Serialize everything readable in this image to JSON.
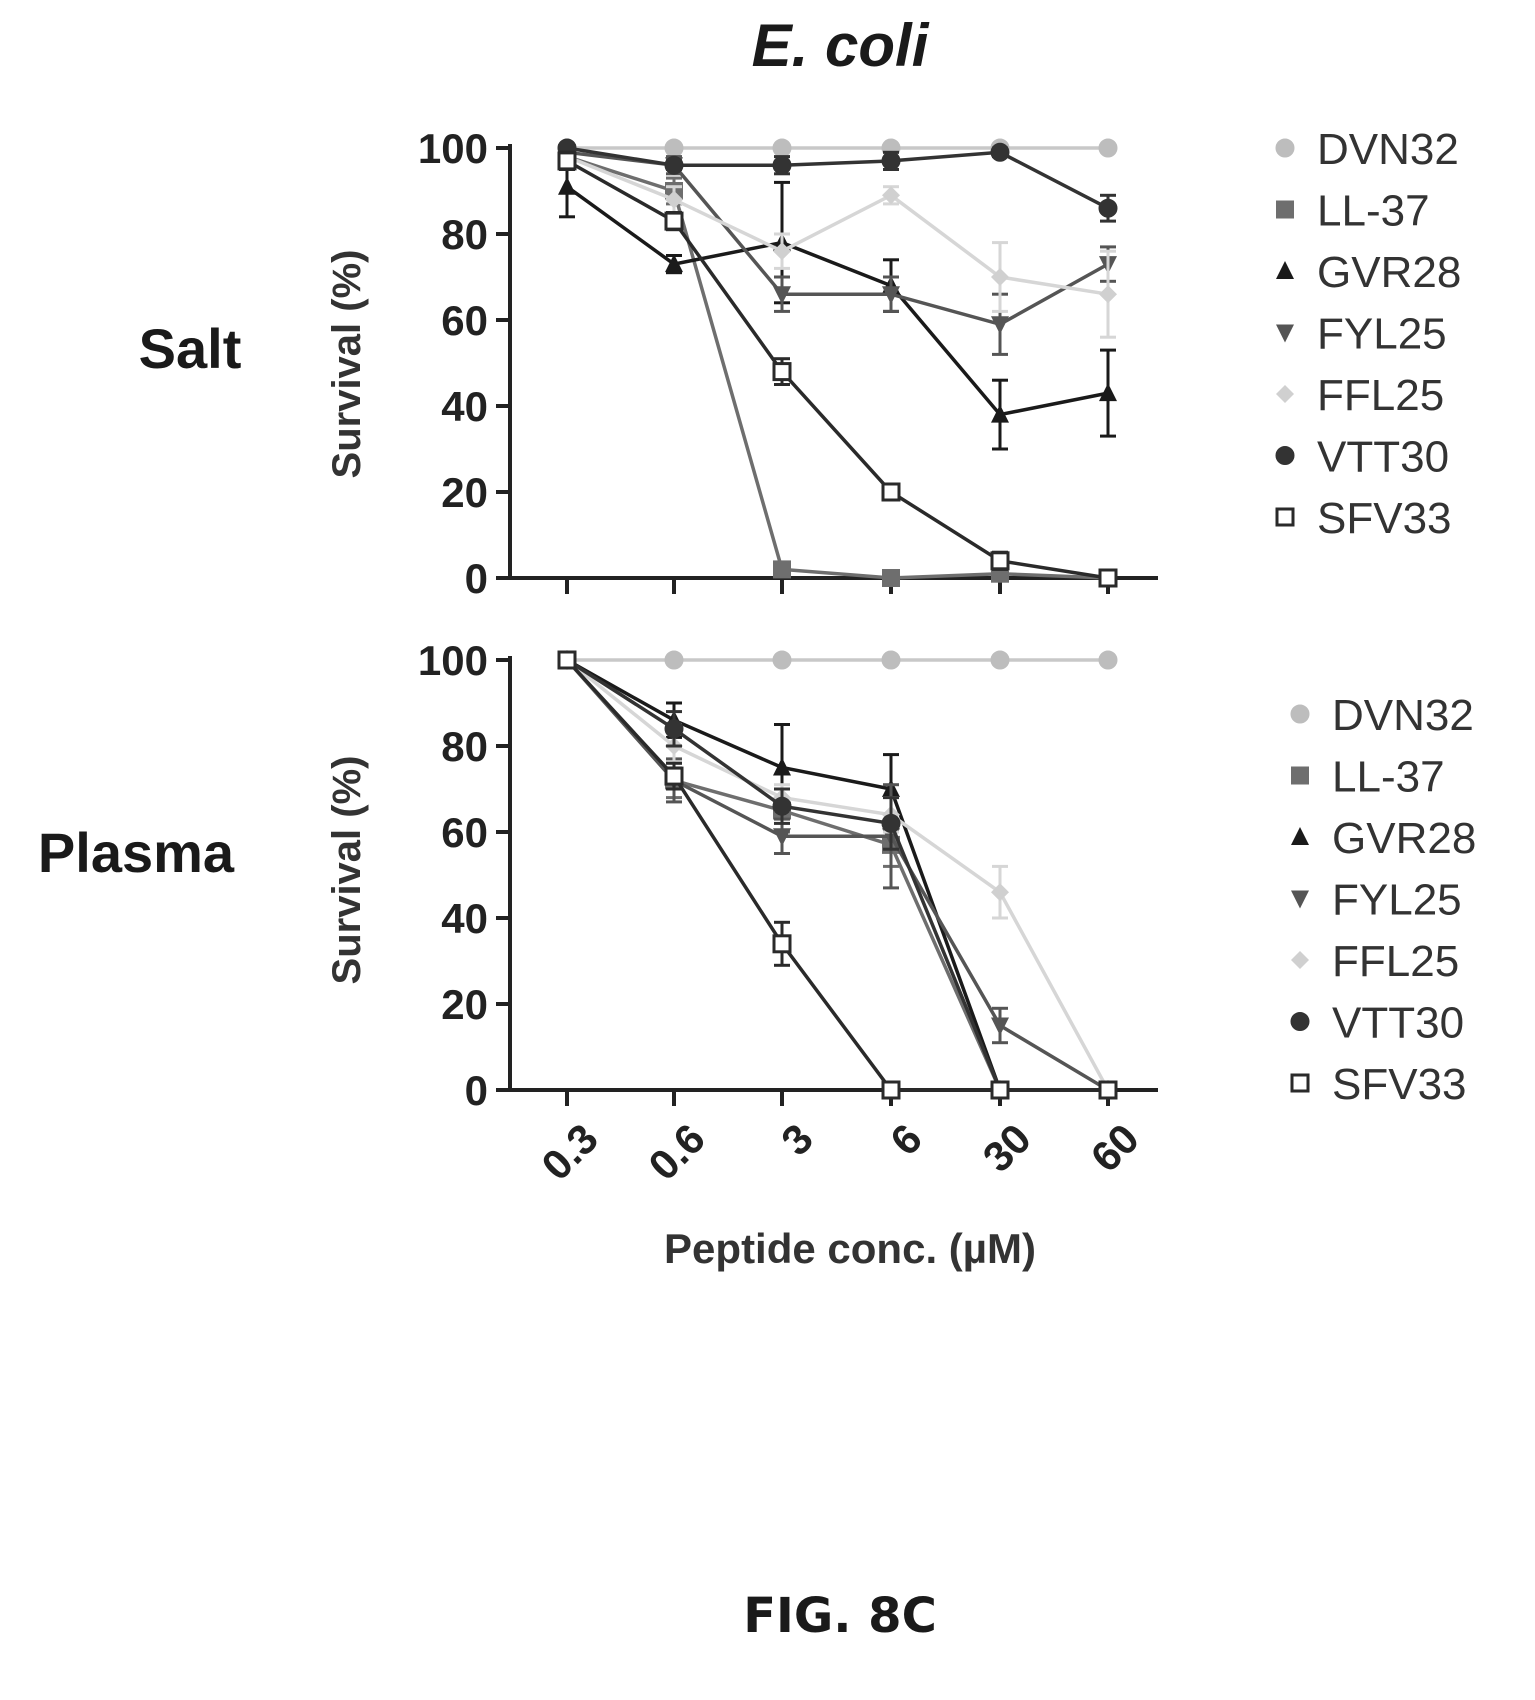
{
  "figure": {
    "title": "E. coli",
    "caption": "FIG. 8C",
    "xlabel": "Peptide conc. (µM)"
  },
  "chart_data": [
    {
      "type": "line",
      "panel_label": "Salt",
      "ylabel": "Survival (%)",
      "categories": [
        "0.3",
        "0.6",
        "3",
        "6",
        "30",
        "60"
      ],
      "yticks": [
        "0",
        "20",
        "40",
        "60",
        "80",
        "100"
      ],
      "ylim": [
        0,
        100
      ],
      "grid": false,
      "legend": "right",
      "series": [
        {
          "name": "DVN32",
          "marker": "circle",
          "color": "#bdbdbd",
          "values": [
            100,
            100,
            100,
            100,
            100,
            100
          ],
          "err": [
            0,
            0,
            0,
            0,
            0,
            0
          ]
        },
        {
          "name": "LL-37",
          "marker": "square",
          "color": "#6e6e6e",
          "values": [
            98,
            90,
            2,
            0,
            1,
            0
          ],
          "err": [
            2,
            3,
            1,
            0,
            1,
            0
          ]
        },
        {
          "name": "GVR28",
          "marker": "triangle-up",
          "color": "#1a1a1a",
          "values": [
            91,
            73,
            78,
            68,
            38,
            43
          ],
          "err": [
            7,
            2,
            14,
            6,
            8,
            10
          ]
        },
        {
          "name": "FYL25",
          "marker": "triangle-down",
          "color": "#555555",
          "values": [
            99,
            96,
            66,
            66,
            59,
            73
          ],
          "err": [
            1,
            2,
            4,
            4,
            7,
            4
          ]
        },
        {
          "name": "FFL25",
          "marker": "diamond",
          "color": "#d0d0d0",
          "values": [
            98,
            88,
            76,
            89,
            70,
            66
          ],
          "err": [
            2,
            3,
            4,
            2,
            8,
            10
          ]
        },
        {
          "name": "VTT30",
          "marker": "circle-dark",
          "color": "#333333",
          "values": [
            100,
            96,
            96,
            97,
            99,
            86
          ],
          "err": [
            0,
            1,
            2,
            2,
            1,
            3
          ]
        },
        {
          "name": "SFV33",
          "marker": "square-open",
          "color": "#2a2a2a",
          "values": [
            97,
            83,
            48,
            20,
            4,
            0
          ],
          "err": [
            2,
            2,
            3,
            1,
            2,
            0
          ]
        }
      ]
    },
    {
      "type": "line",
      "panel_label": "Plasma",
      "ylabel": "Survival (%)",
      "categories": [
        "0.3",
        "0.6",
        "3",
        "6",
        "30",
        "60"
      ],
      "yticks": [
        "0",
        "20",
        "40",
        "60",
        "80",
        "100"
      ],
      "ylim": [
        0,
        100
      ],
      "grid": false,
      "legend": "right",
      "series": [
        {
          "name": "DVN32",
          "marker": "circle",
          "color": "#bdbdbd",
          "values": [
            100,
            100,
            100,
            100,
            100,
            100
          ],
          "err": [
            0,
            0,
            0,
            0,
            0,
            0
          ]
        },
        {
          "name": "LL-37",
          "marker": "square",
          "color": "#6e6e6e",
          "values": [
            100,
            72,
            65,
            57,
            0,
            0
          ],
          "err": [
            0,
            4,
            5,
            5,
            0,
            0
          ]
        },
        {
          "name": "GVR28",
          "marker": "triangle-up",
          "color": "#1a1a1a",
          "values": [
            100,
            86,
            75,
            70,
            0,
            0
          ],
          "err": [
            0,
            4,
            10,
            8,
            0,
            0
          ]
        },
        {
          "name": "FYL25",
          "marker": "triangle-down",
          "color": "#555555",
          "values": [
            100,
            72,
            59,
            59,
            15,
            0
          ],
          "err": [
            0,
            5,
            4,
            12,
            4,
            0
          ]
        },
        {
          "name": "FFL25",
          "marker": "diamond",
          "color": "#d0d0d0",
          "values": [
            100,
            80,
            68,
            64,
            46,
            0
          ],
          "err": [
            0,
            5,
            3,
            4,
            6,
            0
          ]
        },
        {
          "name": "VTT30",
          "marker": "circle-dark",
          "color": "#333333",
          "values": [
            100,
            84,
            66,
            62,
            0,
            0
          ],
          "err": [
            0,
            4,
            4,
            6,
            0,
            0
          ]
        },
        {
          "name": "SFV33",
          "marker": "square-open",
          "color": "#2a2a2a",
          "values": [
            100,
            73,
            34,
            0,
            0,
            0
          ],
          "err": [
            0,
            3,
            5,
            0,
            0,
            0
          ]
        }
      ]
    }
  ]
}
